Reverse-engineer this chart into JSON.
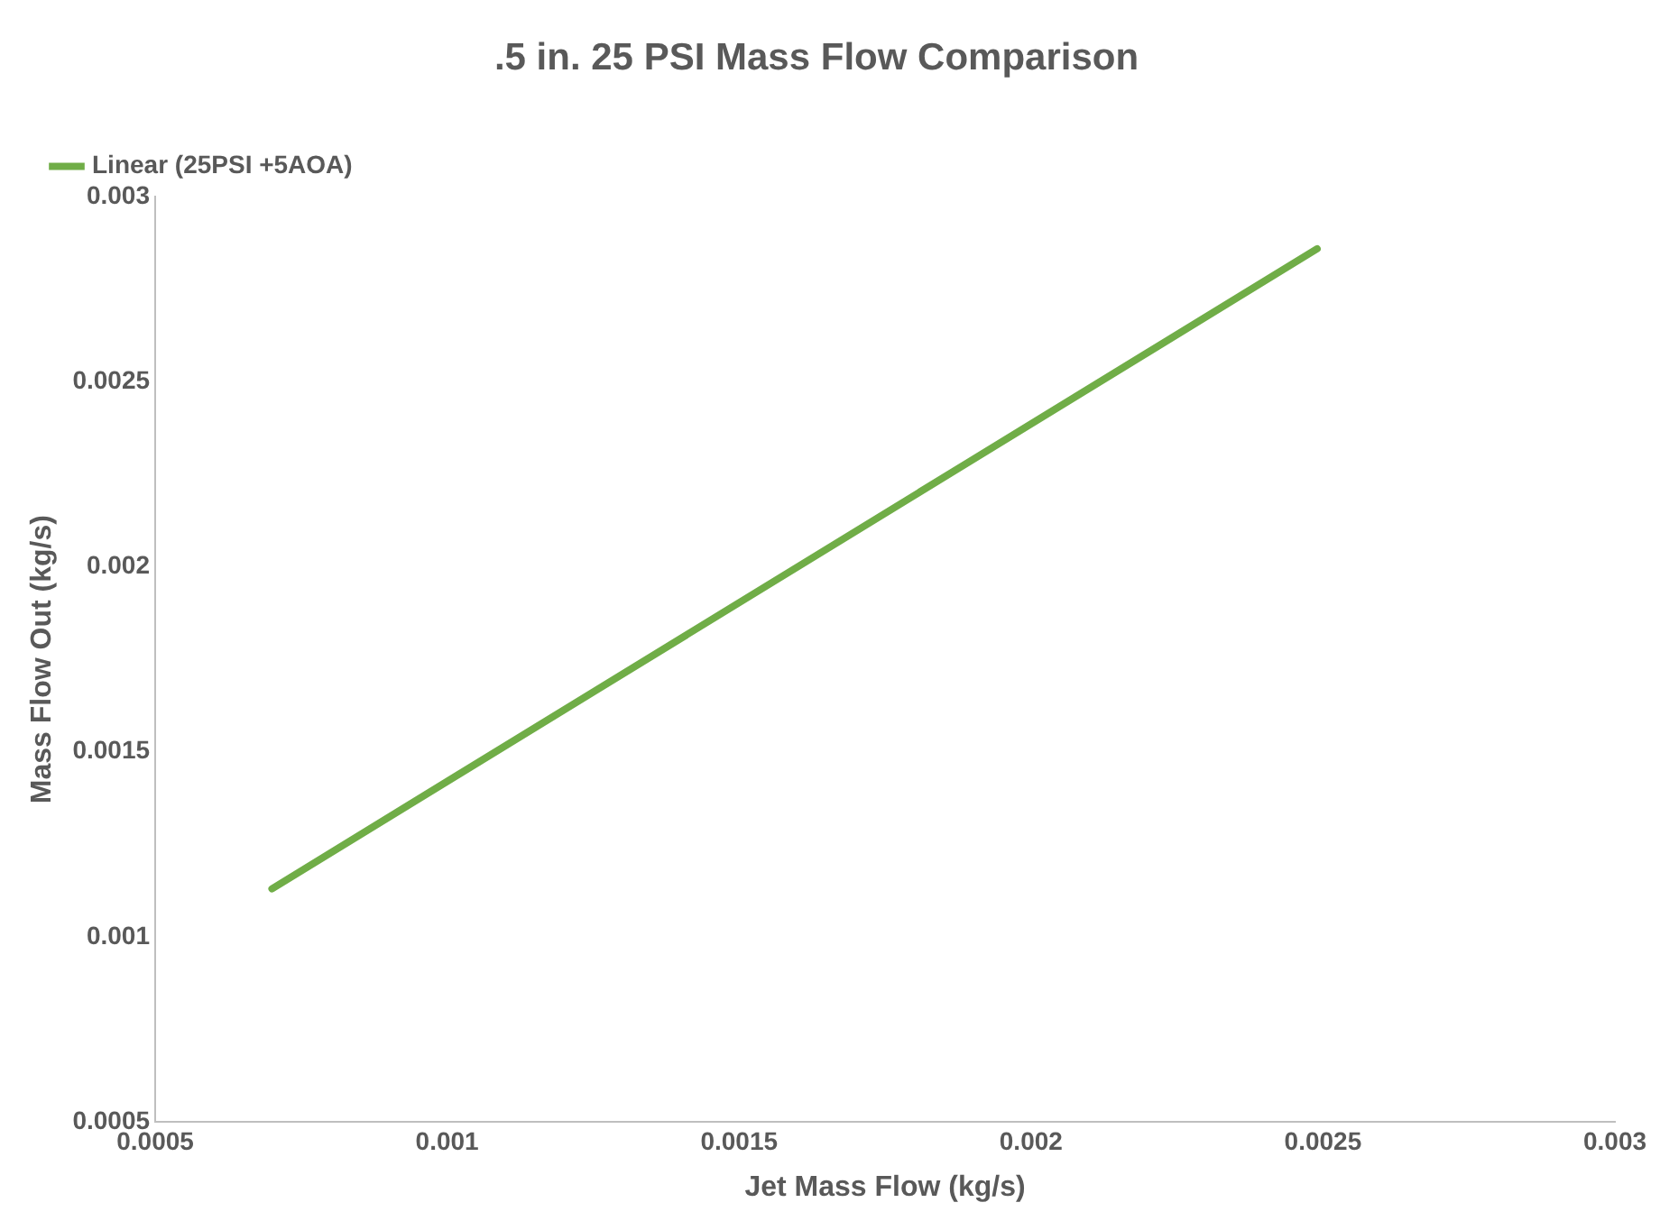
{
  "chart_data": {
    "type": "line",
    "title": ".5 in. 25 PSI Mass Flow Comparison",
    "xlabel": "Jet Mass Flow (kg/s)",
    "ylabel": "Mass Flow Out (kg/s)",
    "x": [
      0.0007,
      0.00249
    ],
    "series": [
      {
        "name": "Linear (25PSI +5AOA)",
        "color": "#70ad47",
        "values": [
          0.00113,
          0.00286
        ]
      }
    ],
    "xlim": [
      0.0005,
      0.003
    ],
    "xticks": [
      0.0005,
      0.001,
      0.0015,
      0.002,
      0.0025,
      0.003
    ],
    "ylim": [
      0.0005,
      0.003
    ],
    "yticks": [
      0.0005,
      0.001,
      0.0015,
      0.002,
      0.0025,
      0.003
    ],
    "grid": false,
    "legend": "top left",
    "marker": "none",
    "line_style": "solid"
  }
}
